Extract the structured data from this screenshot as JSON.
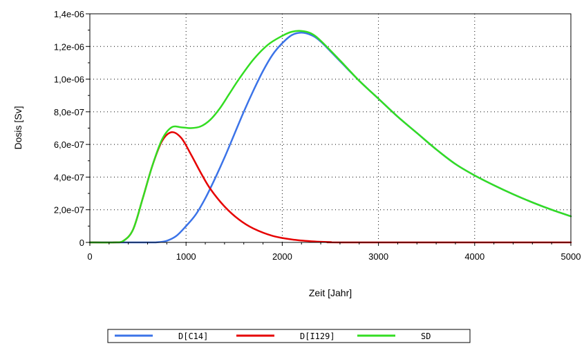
{
  "chart_data": {
    "type": "line",
    "title": "",
    "xlabel": "Zeit [Jahr]",
    "ylabel": "Dosis [Sv]",
    "xlim": [
      0,
      5000
    ],
    "ylim": [
      0,
      1.4e-06
    ],
    "x_ticks": [
      0,
      1000,
      2000,
      3000,
      4000,
      5000
    ],
    "x_tick_labels": [
      "0",
      "1000",
      "2000",
      "3000",
      "4000",
      "5000"
    ],
    "y_ticks": [
      0,
      2e-07,
      4e-07,
      6e-07,
      8e-07,
      1e-06,
      1.2e-06,
      1.4e-06
    ],
    "y_tick_labels": [
      "0",
      "2,0e-07",
      "4,0e-07",
      "6,0e-07",
      "8,0e-07",
      "1,0e-06",
      "1,2e-06",
      "1,4e-06"
    ],
    "grid": "dotted",
    "legend_position": "bottom",
    "series": [
      {
        "name": "D[C14]",
        "color": "#3b73e8",
        "points": [
          [
            0,
            0
          ],
          [
            600,
            0
          ],
          [
            700,
            1e-09
          ],
          [
            800,
            1e-08
          ],
          [
            900,
            4e-08
          ],
          [
            1000,
            1e-07
          ],
          [
            1100,
            1.7e-07
          ],
          [
            1200,
            2.7e-07
          ],
          [
            1300,
            3.9e-07
          ],
          [
            1400,
            5.2e-07
          ],
          [
            1500,
            6.6e-07
          ],
          [
            1600,
            8e-07
          ],
          [
            1700,
            9.3e-07
          ],
          [
            1800,
            1.05e-06
          ],
          [
            1900,
            1.15e-06
          ],
          [
            2000,
            1.22e-06
          ],
          [
            2100,
            1.27e-06
          ],
          [
            2200,
            1.285e-06
          ],
          [
            2300,
            1.27e-06
          ],
          [
            2400,
            1.23e-06
          ],
          [
            2600,
            1.11e-06
          ],
          [
            2800,
            9.9e-07
          ],
          [
            3000,
            8.8e-07
          ],
          [
            3200,
            7.7e-07
          ],
          [
            3400,
            6.7e-07
          ],
          [
            3600,
            5.7e-07
          ],
          [
            3800,
            4.8e-07
          ],
          [
            4000,
            4.1e-07
          ],
          [
            4200,
            3.5e-07
          ],
          [
            4400,
            2.95e-07
          ],
          [
            4600,
            2.45e-07
          ],
          [
            4800,
            2e-07
          ],
          [
            5000,
            1.6e-07
          ]
        ]
      },
      {
        "name": "D[I129]",
        "color": "#e60000",
        "points": [
          [
            0,
            0
          ],
          [
            250,
            0
          ],
          [
            350,
            1e-08
          ],
          [
            450,
            8e-08
          ],
          [
            550,
            2.7e-07
          ],
          [
            650,
            4.7e-07
          ],
          [
            750,
            6.2e-07
          ],
          [
            850,
            6.75e-07
          ],
          [
            950,
            6.4e-07
          ],
          [
            1050,
            5.4e-07
          ],
          [
            1150,
            4.3e-07
          ],
          [
            1250,
            3.3e-07
          ],
          [
            1400,
            2.2e-07
          ],
          [
            1550,
            1.4e-07
          ],
          [
            1700,
            8.5e-08
          ],
          [
            1900,
            4e-08
          ],
          [
            2100,
            1.8e-08
          ],
          [
            2300,
            7e-09
          ],
          [
            2500,
            2e-09
          ],
          [
            2700,
            0
          ],
          [
            5000,
            0
          ]
        ]
      },
      {
        "name": "SD",
        "color": "#33dd22",
        "points": [
          [
            0,
            0
          ],
          [
            250,
            0
          ],
          [
            350,
            1e-08
          ],
          [
            450,
            8e-08
          ],
          [
            550,
            2.7e-07
          ],
          [
            650,
            4.7e-07
          ],
          [
            750,
            6.3e-07
          ],
          [
            850,
            7.05e-07
          ],
          [
            950,
            7.05e-07
          ],
          [
            1050,
            7e-07
          ],
          [
            1150,
            7.1e-07
          ],
          [
            1250,
            7.5e-07
          ],
          [
            1350,
            8.2e-07
          ],
          [
            1450,
            9.1e-07
          ],
          [
            1550,
            1e-06
          ],
          [
            1700,
            1.12e-06
          ],
          [
            1850,
            1.21e-06
          ],
          [
            2000,
            1.265e-06
          ],
          [
            2100,
            1.29e-06
          ],
          [
            2200,
            1.295e-06
          ],
          [
            2300,
            1.28e-06
          ],
          [
            2400,
            1.235e-06
          ],
          [
            2600,
            1.115e-06
          ],
          [
            2800,
            9.9e-07
          ],
          [
            3000,
            8.8e-07
          ],
          [
            3200,
            7.7e-07
          ],
          [
            3400,
            6.7e-07
          ],
          [
            3600,
            5.7e-07
          ],
          [
            3800,
            4.8e-07
          ],
          [
            4000,
            4.1e-07
          ],
          [
            4200,
            3.5e-07
          ],
          [
            4400,
            2.95e-07
          ],
          [
            4600,
            2.45e-07
          ],
          [
            4800,
            2e-07
          ],
          [
            5000,
            1.6e-07
          ]
        ]
      }
    ]
  }
}
